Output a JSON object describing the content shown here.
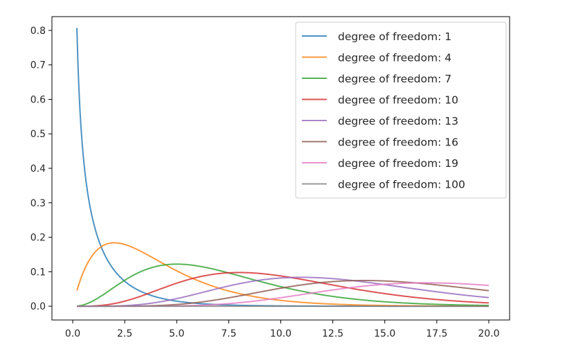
{
  "chart_data": {
    "type": "line",
    "title": "",
    "xlabel": "",
    "ylabel": "",
    "xlim": [
      -1.0,
      21.0
    ],
    "ylim": [
      -0.04,
      0.84
    ],
    "x_range": [
      0.2,
      20.0
    ],
    "xticks": [
      0.0,
      2.5,
      5.0,
      7.5,
      10.0,
      12.5,
      15.0,
      17.5,
      20.0
    ],
    "xtick_labels": [
      "0.0",
      "2.5",
      "5.0",
      "7.5",
      "10.0",
      "12.5",
      "15.0",
      "17.5",
      "20.0"
    ],
    "yticks": [
      0.0,
      0.1,
      0.2,
      0.3,
      0.4,
      0.5,
      0.6,
      0.7,
      0.8
    ],
    "ytick_labels": [
      "0.0",
      "0.1",
      "0.2",
      "0.3",
      "0.4",
      "0.5",
      "0.6",
      "0.7",
      "0.8"
    ],
    "grid": false,
    "legend_position": "top-right",
    "series": [
      {
        "name": "degree of freedom: 1",
        "df": 1,
        "color": "#1f77b4"
      },
      {
        "name": "degree of freedom: 4",
        "df": 4,
        "color": "#ff7f0e"
      },
      {
        "name": "degree of freedom: 7",
        "df": 7,
        "color": "#2ca02c"
      },
      {
        "name": "degree of freedom: 10",
        "df": 10,
        "color": "#d62728"
      },
      {
        "name": "degree of freedom: 13",
        "df": 13,
        "color": "#9467bd"
      },
      {
        "name": "degree of freedom: 16",
        "df": 16,
        "color": "#8c564b"
      },
      {
        "name": "degree of freedom: 19",
        "df": 19,
        "color": "#e377c2"
      },
      {
        "name": "degree of freedom: 100",
        "df": 100,
        "color": "#7f7f7f"
      }
    ]
  }
}
